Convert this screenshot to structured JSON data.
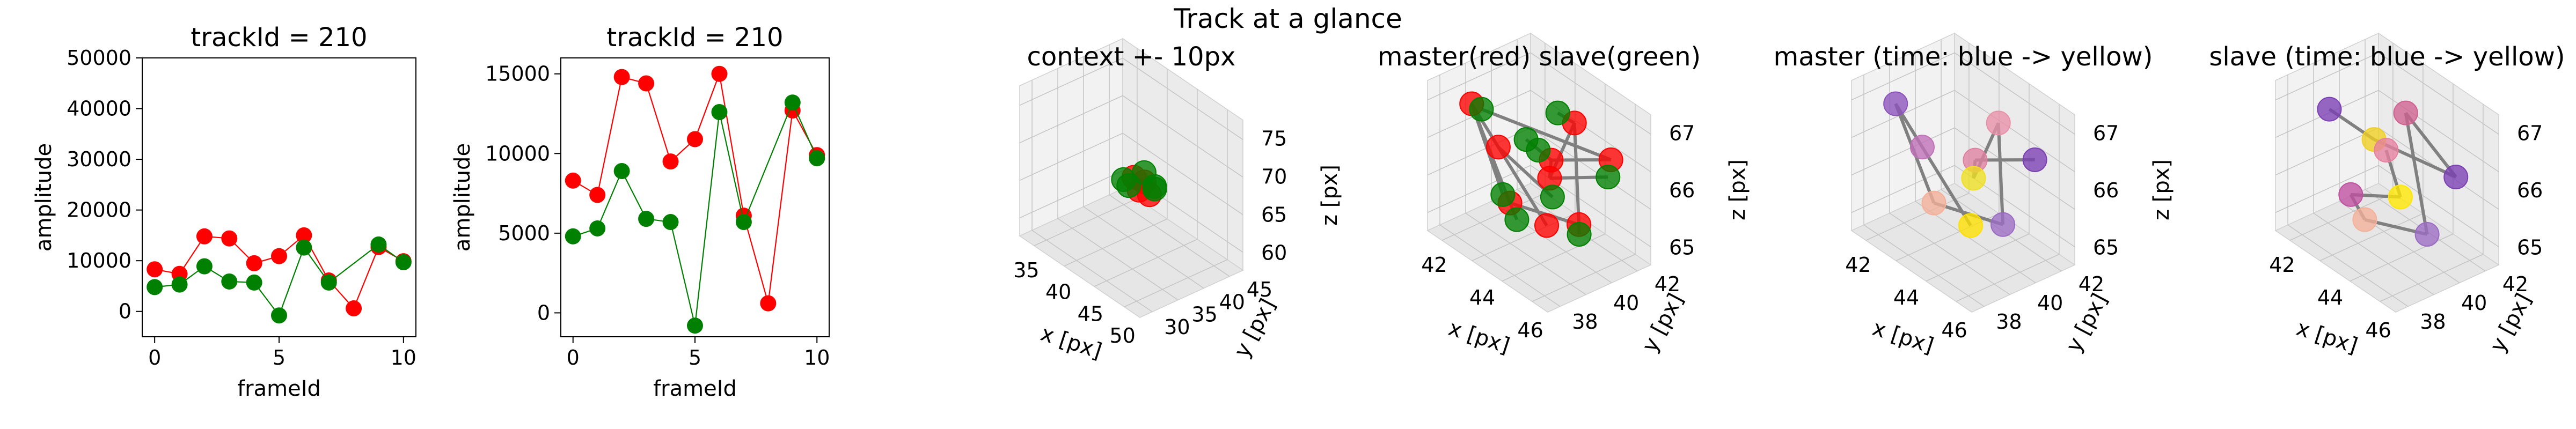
{
  "figure": {
    "suptitle": "Track at a glance"
  },
  "colors": {
    "master": "#ff0000",
    "slave": "#008000",
    "edge": "#808080"
  },
  "chart_data": [
    {
      "type": "line",
      "title": "trackId = 210",
      "xlabel": "frameId",
      "ylabel": "amplitude",
      "xlim": [
        -0.5,
        10.5
      ],
      "ylim": [
        -5000,
        50000
      ],
      "xticks": [
        0,
        5,
        10
      ],
      "yticks": [
        0,
        10000,
        20000,
        30000,
        40000,
        50000
      ],
      "x": [
        0,
        1,
        2,
        3,
        4,
        5,
        6,
        7,
        8,
        9,
        10
      ],
      "series": [
        {
          "color": "#ff0000",
          "values": [
            8300,
            7400,
            14800,
            14400,
            9500,
            10900,
            15000,
            6100,
            600,
            12700,
            9900
          ]
        },
        {
          "color": "#008000",
          "values": [
            4800,
            5300,
            8900,
            5900,
            5700,
            -800,
            12600,
            5700,
            null,
            13200,
            9700
          ]
        }
      ]
    },
    {
      "type": "line",
      "title": "trackId = 210",
      "xlabel": "frameId",
      "ylabel": "amplitude",
      "xlim": [
        -0.5,
        10.5
      ],
      "ylim": [
        -1500,
        16000
      ],
      "xticks": [
        0,
        5,
        10
      ],
      "yticks": [
        0,
        5000,
        10000,
        15000
      ],
      "x": [
        0,
        1,
        2,
        3,
        4,
        5,
        6,
        7,
        8,
        9,
        10
      ],
      "series": [
        {
          "color": "#ff0000",
          "values": [
            8300,
            7400,
            14800,
            14400,
            9500,
            10900,
            15000,
            6100,
            600,
            12700,
            9900
          ]
        },
        {
          "color": "#008000",
          "values": [
            4800,
            5300,
            8900,
            5900,
            5700,
            -800,
            12600,
            5700,
            null,
            13200,
            9700
          ]
        }
      ]
    },
    {
      "type": "scatter",
      "title": "context +- 10px",
      "xlabel": "x [px]",
      "ylabel": "y [px]",
      "zlabel": "z [px]",
      "xticks": [
        35,
        40,
        45,
        50
      ],
      "yticks": [
        30,
        35,
        40,
        45
      ],
      "zticks": [
        60,
        65,
        70,
        75
      ],
      "points": [
        {
          "x": 43,
          "y": 39,
          "z": 66.5,
          "color": "#ff0000"
        },
        {
          "x": 45,
          "y": 38,
          "z": 66,
          "color": "#ff0000"
        },
        {
          "x": 44,
          "y": 40,
          "z": 66,
          "color": "#ff0000"
        },
        {
          "x": 46,
          "y": 39,
          "z": 65.5,
          "color": "#ff0000"
        },
        {
          "x": 42,
          "y": 38,
          "z": 66,
          "color": "#008000"
        },
        {
          "x": 44,
          "y": 37,
          "z": 66.5,
          "color": "#008000"
        },
        {
          "x": 46,
          "y": 40,
          "z": 66,
          "color": "#008000"
        },
        {
          "x": 45,
          "y": 41,
          "z": 65.5,
          "color": "#008000"
        },
        {
          "x": 43,
          "y": 41,
          "z": 66.5,
          "color": "#008000"
        }
      ]
    },
    {
      "type": "scatter",
      "title": "master(red) slave(green)",
      "xlabel": "x [px]",
      "ylabel": "y [px]",
      "zlabel": "z [px]",
      "xticks": [
        42,
        44,
        46
      ],
      "yticks": [
        38,
        40,
        42
      ],
      "zticks": [
        65,
        66,
        67
      ]
    },
    {
      "type": "scatter",
      "title": "master (time: blue -> yellow)",
      "xlabel": "x [px]",
      "ylabel": "y [px]",
      "zlabel": "z [px]",
      "xticks": [
        42,
        44,
        46
      ],
      "yticks": [
        38,
        40,
        42
      ],
      "zticks": [
        65,
        66,
        67
      ]
    },
    {
      "type": "scatter",
      "title": "slave (time: blue -> yellow)",
      "xlabel": "x [px]",
      "ylabel": "y [px]",
      "zlabel": "z [px]",
      "xticks": [
        42,
        44,
        46
      ],
      "yticks": [
        38,
        40,
        42
      ],
      "zticks": [
        65,
        66,
        67
      ]
    }
  ],
  "tracks": {
    "master": [
      {
        "x": 46.6,
        "y": 42.0,
        "z": 66.4,
        "color": "#7b3fb3"
      },
      {
        "x": 44.6,
        "y": 40.4,
        "z": 66.2,
        "color": "#e080a0"
      },
      {
        "x": 45.8,
        "y": 39.0,
        "z": 66.3,
        "color": "#f0e020"
      },
      {
        "x": 45.4,
        "y": 41.0,
        "z": 66.9,
        "color": "#e890a8"
      },
      {
        "x": 46.4,
        "y": 40.2,
        "z": 65.5,
        "color": "#9b6bc4"
      },
      {
        "x": 44.6,
        "y": 37.8,
        "z": 65.8,
        "color": "#f5b098"
      },
      {
        "x": 42.0,
        "y": 38.2,
        "z": 66.9,
        "color": "#8d52be"
      },
      {
        "x": 43.0,
        "y": 38.8,
        "z": 66.3,
        "color": "#c070b8"
      },
      {
        "x": 46.0,
        "y": 38.6,
        "z": 65.6,
        "color": "#ffe000"
      }
    ],
    "slave": [
      {
        "x": 42.2,
        "y": 38.6,
        "z": 66.8,
        "color": "#7b3fb3"
      },
      {
        "x": 44.8,
        "y": 38.6,
        "z": 66.8,
        "color": "#f0d020"
      },
      {
        "x": 46.8,
        "y": 41.6,
        "z": 66.2,
        "color": "#7b3fb3"
      },
      {
        "x": 44.8,
        "y": 40.6,
        "z": 67.0,
        "color": "#d06090"
      },
      {
        "x": 46.6,
        "y": 40.0,
        "z": 65.4,
        "color": "#9b6bc4"
      },
      {
        "x": 45.0,
        "y": 37.8,
        "z": 65.6,
        "color": "#f5b098"
      },
      {
        "x": 44.0,
        "y": 38.0,
        "z": 65.8,
        "color": "#c050a0"
      },
      {
        "x": 45.6,
        "y": 39.4,
        "z": 65.9,
        "color": "#ffe800"
      },
      {
        "x": 44.4,
        "y": 39.8,
        "z": 66.4,
        "color": "#e880a0"
      }
    ]
  }
}
